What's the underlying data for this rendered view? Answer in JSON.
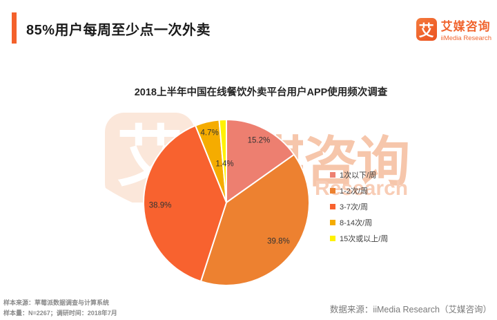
{
  "header": {
    "title": "85%用户每周至少点一次外卖"
  },
  "brand": {
    "logo_glyph": "艾",
    "name_cn": "艾媒咨询",
    "name_en": "iiMedia Research"
  },
  "watermark": {
    "glyph": "艾",
    "text_cn": "艾媒咨询",
    "text_en": "iiMedia Research"
  },
  "chart_data": {
    "type": "pie",
    "title": "2018上半年中国在线餐饮外卖平台用户APP使用频次调查",
    "categories": [
      "1次以下/周",
      "1-2次/周",
      "3-7次/周",
      "8-14次/周",
      "15次或以上/周"
    ],
    "values": [
      15.2,
      39.8,
      38.9,
      4.7,
      1.4
    ],
    "labels": [
      "15.2%",
      "39.8%",
      "38.9%",
      "4.7%",
      "1.4%"
    ],
    "colors": [
      "#ED7F70",
      "#ED8130",
      "#F8622F",
      "#F5AC00",
      "#FFF200"
    ],
    "start_angle_deg": 0,
    "direction": "clockwise",
    "legend_position": "right",
    "label_radius": [
      0.85,
      0.78,
      0.8,
      0.87,
      0.47
    ],
    "slice_border_color": "#FFFFFF",
    "label_color": "#333333"
  },
  "footer": {
    "sample_source": "样本来源：草莓派数据调查与计算系统",
    "sample_size": "样本量：N=2267；调研时间：2018年7月",
    "data_source": "数据来源：iiMedia Research（艾媒咨询）"
  },
  "colors": {
    "brand_orange": "#F1642C",
    "header_accent": "#F4612B",
    "footer_gray": "#8A8A8A",
    "watermark_peach": "#FBE7DA",
    "watermark_text": "#F6C6AB"
  }
}
